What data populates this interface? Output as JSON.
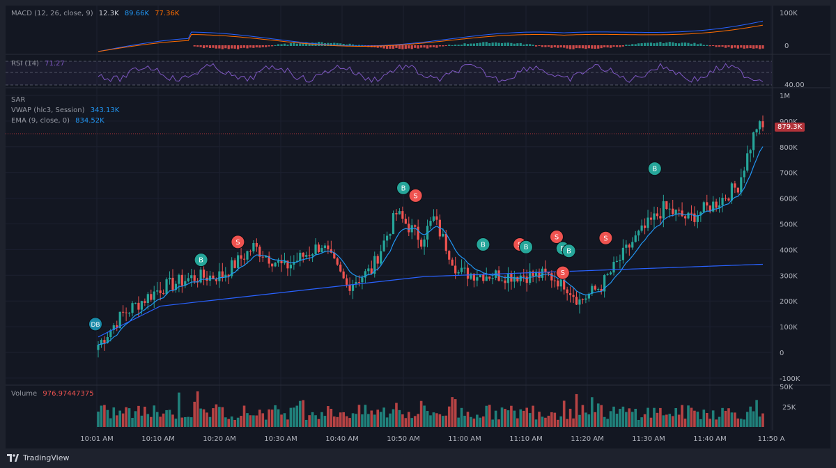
{
  "macd": {
    "title": "MACD (12, 26, close, 9)",
    "hist": "12.3K",
    "macd": "89.66K",
    "signal": "77.36K",
    "axis": [
      "100K",
      "0"
    ]
  },
  "rsi": {
    "title": "RSI (14)",
    "value": "71.27",
    "axis": [
      "40.00"
    ]
  },
  "main": {
    "legend": [
      {
        "name": "SAR",
        "value": ""
      },
      {
        "name": "VWAP (hlc3, Session)",
        "value": "343.13K"
      },
      {
        "name": "EMA (9, close, 0)",
        "value": "834.52K"
      }
    ],
    "y_ticks": [
      "1M",
      "900K",
      "800K",
      "700K",
      "600K",
      "500K",
      "400K",
      "300K",
      "200K",
      "100K",
      "0",
      "-100K"
    ],
    "last_price": "879.3K"
  },
  "volume": {
    "title": "Volume",
    "value": "976.97447375",
    "axis": [
      "50K",
      "25K"
    ]
  },
  "time_labels": [
    "10:01 AM",
    "10:10 AM",
    "10:20 AM",
    "10:30 AM",
    "10:40 AM",
    "10:50 AM",
    "11:00 AM",
    "11:10 AM",
    "11:20 AM",
    "11:30 AM",
    "11:40 AM",
    "11:50 A"
  ],
  "signals": [
    {
      "label": "DB",
      "type": "buy",
      "time": "10:01 AM",
      "price": 110000
    },
    {
      "label": "B",
      "type": "buy",
      "time": "10:17 AM",
      "price": 360000
    },
    {
      "label": "S",
      "type": "sell",
      "time": "10:23 AM",
      "price": 430000
    },
    {
      "label": "B",
      "type": "buy",
      "time": "10:50 AM",
      "price": 640000
    },
    {
      "label": "S",
      "type": "sell",
      "time": "10:52 AM",
      "price": 610000
    },
    {
      "label": "B",
      "type": "buy",
      "time": "11:03 AM",
      "price": 420000
    },
    {
      "label": "S",
      "type": "sell",
      "time": "11:09 AM",
      "price": 420000
    },
    {
      "label": "B",
      "type": "buy",
      "time": "11:10 AM",
      "price": 410000
    },
    {
      "label": "S",
      "type": "sell",
      "time": "11:15 AM",
      "price": 450000
    },
    {
      "label": "B",
      "type": "buy",
      "time": "11:16 AM",
      "price": 405000
    },
    {
      "label": "B",
      "type": "buy",
      "time": "11:17 AM",
      "price": 395000
    },
    {
      "label": "S",
      "type": "sell",
      "time": "11:16 AM",
      "price": 310000
    },
    {
      "label": "S",
      "type": "sell",
      "time": "11:23 AM",
      "price": 445000
    },
    {
      "label": "B",
      "type": "buy",
      "time": "11:31 AM",
      "price": 715000
    }
  ],
  "colors": {
    "up": "#26a69a",
    "down": "#ef5350",
    "vwap": "#2962ff",
    "ema": "#2196f3",
    "macd": "#2962ff",
    "signal": "#ff6d00",
    "rsi": "#7e57c2",
    "bg": "#131722"
  },
  "brand": "TradingView"
}
